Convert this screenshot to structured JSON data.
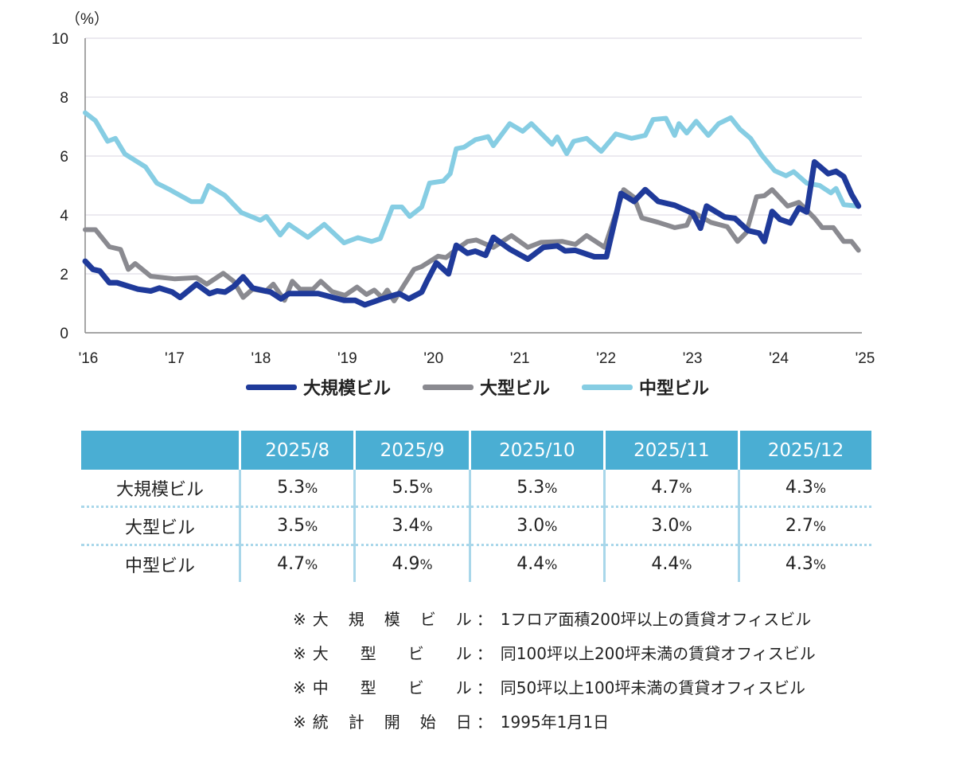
{
  "chart_data": {
    "type": "line",
    "ylabel": "（%）",
    "ylim": [
      0,
      10
    ],
    "yticks": [
      "0",
      "2",
      "4",
      "6",
      "8",
      "10"
    ],
    "xlim": [
      2016,
      2025
    ],
    "xticks": [
      "'16",
      "'17",
      "'18",
      "'19",
      "'20",
      "'21",
      "'22",
      "'23",
      "'24",
      "'25"
    ],
    "grid": true,
    "legend_position": "bottom",
    "series": [
      {
        "name": "大規模ビル",
        "color": "#1f3a9a",
        "x": [
          2016.0,
          2016.09,
          2016.17,
          2016.28,
          2016.37,
          2016.61,
          2016.76,
          2016.86,
          2017.01,
          2017.1,
          2017.29,
          2017.44,
          2017.53,
          2017.62,
          2017.72,
          2017.83,
          2017.94,
          2018.15,
          2018.27,
          2018.36,
          2018.7,
          2019.0,
          2019.13,
          2019.24,
          2019.44,
          2019.64,
          2019.75,
          2019.9,
          2019.96,
          2020.07,
          2020.21,
          2020.3,
          2020.43,
          2020.52,
          2020.64,
          2020.73,
          2020.92,
          2021.13,
          2021.31,
          2021.47,
          2021.56,
          2021.68,
          2021.9,
          2022.04,
          2022.21,
          2022.36,
          2022.49,
          2022.64,
          2022.83,
          2023.04,
          2023.13,
          2023.2,
          2023.41,
          2023.53,
          2023.68,
          2023.81,
          2023.87,
          2023.96,
          2024.05,
          2024.17,
          2024.27,
          2024.36,
          2024.45,
          2024.61,
          2024.7,
          2024.79,
          2024.88,
          2024.96
        ],
        "y": [
          2.43,
          2.15,
          2.1,
          1.7,
          1.7,
          1.48,
          1.42,
          1.52,
          1.38,
          1.2,
          1.65,
          1.33,
          1.42,
          1.38,
          1.57,
          1.9,
          1.52,
          1.38,
          1.15,
          1.33,
          1.33,
          1.1,
          1.1,
          0.95,
          1.15,
          1.33,
          1.15,
          1.38,
          1.75,
          2.37,
          2.0,
          2.97,
          2.7,
          2.77,
          2.63,
          3.24,
          2.84,
          2.5,
          2.9,
          2.95,
          2.78,
          2.8,
          2.58,
          2.58,
          4.73,
          4.46,
          4.86,
          4.46,
          4.33,
          4.06,
          3.55,
          4.3,
          3.93,
          3.88,
          3.47,
          3.38,
          3.1,
          4.12,
          3.85,
          3.73,
          4.24,
          4.1,
          5.8,
          5.4,
          5.48,
          5.3,
          4.7,
          4.3
        ]
      },
      {
        "name": "大型ビル",
        "color": "#8a8a90",
        "x": [
          2016.0,
          2016.12,
          2016.28,
          2016.41,
          2016.5,
          2016.58,
          2016.76,
          2017.04,
          2017.29,
          2017.41,
          2017.6,
          2017.72,
          2017.83,
          2017.94,
          2018.09,
          2018.18,
          2018.31,
          2018.4,
          2018.49,
          2018.64,
          2018.73,
          2018.86,
          2019.01,
          2019.15,
          2019.26,
          2019.35,
          2019.44,
          2019.5,
          2019.58,
          2019.69,
          2019.81,
          2019.9,
          2020.09,
          2020.18,
          2020.3,
          2020.43,
          2020.53,
          2020.73,
          2020.94,
          2021.13,
          2021.28,
          2021.53,
          2021.68,
          2021.81,
          2022.02,
          2022.24,
          2022.36,
          2022.45,
          2022.64,
          2022.83,
          2022.97,
          2023.04,
          2023.25,
          2023.44,
          2023.56,
          2023.66,
          2023.78,
          2023.87,
          2023.96,
          2024.14,
          2024.27,
          2024.45,
          2024.54,
          2024.67,
          2024.79,
          2024.88,
          2024.96
        ],
        "y": [
          3.5,
          3.5,
          2.92,
          2.83,
          2.15,
          2.35,
          1.92,
          1.83,
          1.87,
          1.65,
          2.02,
          1.75,
          1.2,
          1.48,
          1.4,
          1.65,
          1.1,
          1.75,
          1.48,
          1.48,
          1.75,
          1.4,
          1.27,
          1.55,
          1.3,
          1.45,
          1.2,
          1.45,
          1.08,
          1.6,
          2.15,
          2.25,
          2.6,
          2.55,
          2.83,
          3.1,
          3.15,
          2.9,
          3.3,
          2.9,
          3.07,
          3.1,
          3.0,
          3.3,
          2.9,
          4.86,
          4.6,
          3.9,
          3.75,
          3.57,
          3.65,
          4.1,
          3.75,
          3.6,
          3.1,
          3.4,
          4.62,
          4.65,
          4.86,
          4.3,
          4.43,
          3.9,
          3.57,
          3.57,
          3.1,
          3.1,
          2.8
        ]
      },
      {
        "name": "中型ビル",
        "color": "#86cde3",
        "x": [
          2016.0,
          2016.12,
          2016.26,
          2016.35,
          2016.46,
          2016.7,
          2016.83,
          2016.98,
          2017.23,
          2017.35,
          2017.43,
          2017.62,
          2017.81,
          2018.03,
          2018.1,
          2018.26,
          2018.36,
          2018.58,
          2018.77,
          2019.0,
          2019.16,
          2019.32,
          2019.42,
          2019.56,
          2019.67,
          2019.76,
          2019.9,
          2019.99,
          2020.15,
          2020.23,
          2020.3,
          2020.39,
          2020.52,
          2020.67,
          2020.73,
          2020.92,
          2021.07,
          2021.17,
          2021.41,
          2021.47,
          2021.58,
          2021.66,
          2021.81,
          2021.98,
          2022.15,
          2022.33,
          2022.49,
          2022.58,
          2022.73,
          2022.83,
          2022.88,
          2022.97,
          2023.08,
          2023.22,
          2023.34,
          2023.48,
          2023.59,
          2023.71,
          2023.84,
          2023.99,
          2024.12,
          2024.21,
          2024.36,
          2024.51,
          2024.64,
          2024.7,
          2024.79,
          2024.95
        ],
        "y": [
          7.47,
          7.2,
          6.5,
          6.6,
          6.07,
          5.63,
          5.08,
          4.86,
          4.45,
          4.45,
          5.0,
          4.66,
          4.08,
          3.82,
          3.95,
          3.32,
          3.68,
          3.24,
          3.68,
          3.05,
          3.23,
          3.1,
          3.2,
          4.27,
          4.27,
          3.95,
          4.27,
          5.08,
          5.15,
          5.4,
          6.25,
          6.3,
          6.55,
          6.66,
          6.35,
          7.1,
          6.84,
          7.1,
          6.4,
          6.65,
          6.08,
          6.5,
          6.6,
          6.16,
          6.75,
          6.6,
          6.7,
          7.24,
          7.28,
          6.7,
          7.1,
          6.78,
          7.18,
          6.7,
          7.1,
          7.3,
          6.9,
          6.6,
          6.03,
          5.5,
          5.33,
          5.47,
          5.08,
          5.0,
          4.75,
          4.9,
          4.35,
          4.3
        ]
      }
    ]
  },
  "table": {
    "headers": [
      "",
      "2025/8",
      "2025/9",
      "2025/10",
      "2025/11",
      "2025/12"
    ],
    "unit": "%",
    "rows": [
      {
        "label": "大規模ビル",
        "values": [
          "5.3",
          "5.5",
          "5.3",
          "4.7",
          "4.3"
        ]
      },
      {
        "label": "大型ビル",
        "values": [
          "3.5",
          "3.4",
          "3.0",
          "3.0",
          "2.7"
        ]
      },
      {
        "label": "中型ビル",
        "values": [
          "4.7",
          "4.9",
          "4.4",
          "4.4",
          "4.3"
        ]
      }
    ]
  },
  "notes": {
    "mark": "※",
    "sep": "：",
    "items": [
      {
        "label": "大規模ビル",
        "text": "1フロア面積200坪以上の賃貸オフィスビル"
      },
      {
        "label": "大型ビル",
        "text": "同100坪以上200坪未満の賃貸オフィスビル"
      },
      {
        "label": "中型ビル",
        "text": "同50坪以上100坪未満の賃貸オフィスビル"
      },
      {
        "label": "統計開始日",
        "text": "1995年1月1日"
      }
    ]
  }
}
